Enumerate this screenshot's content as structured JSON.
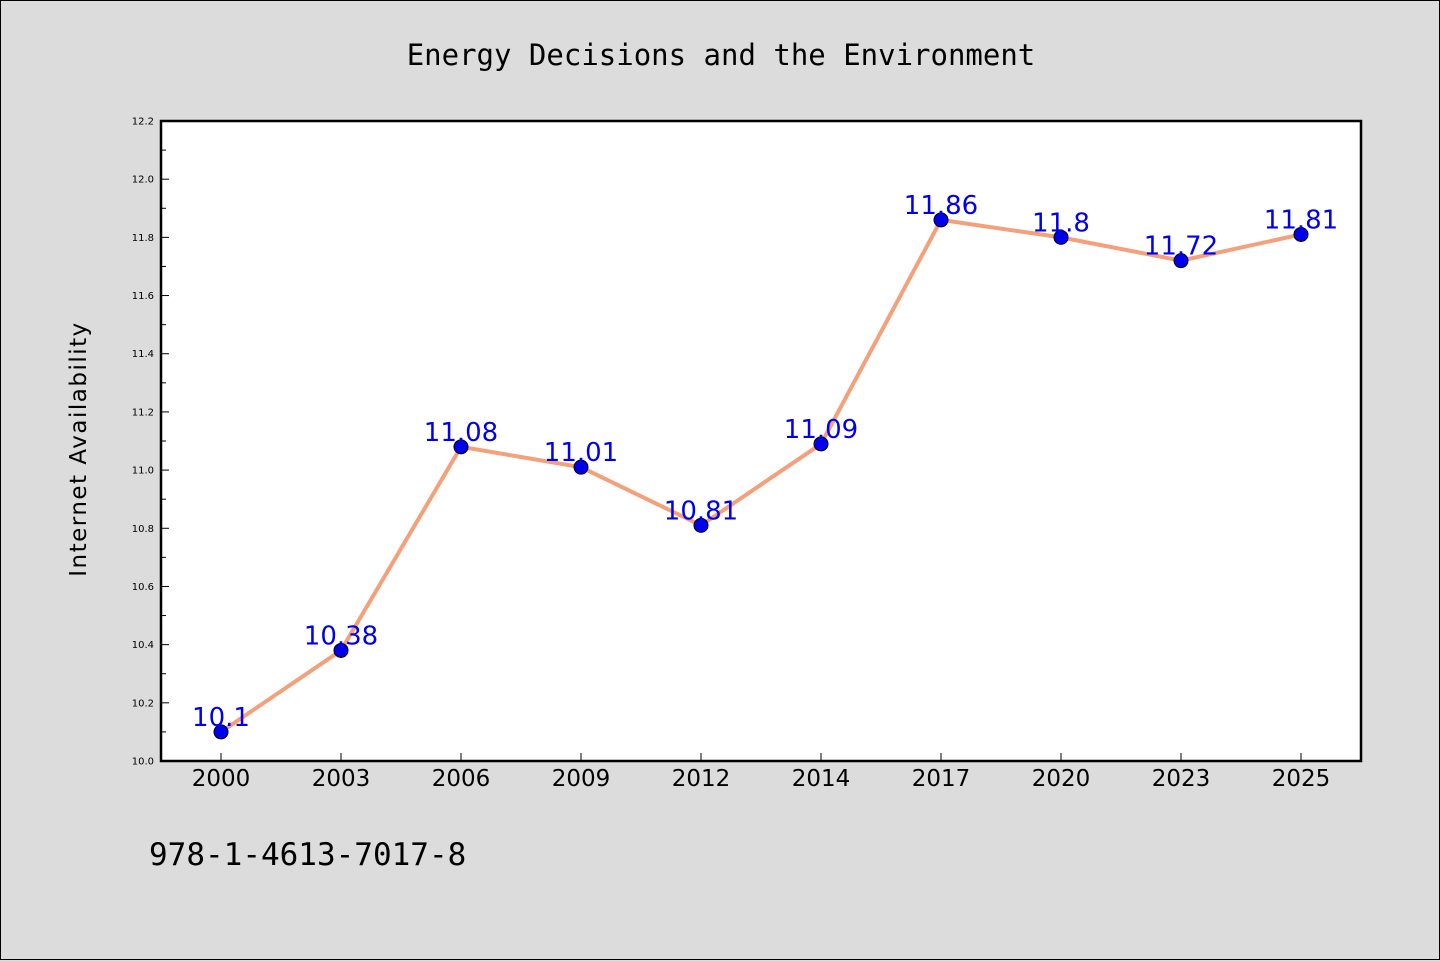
{
  "chart_data": {
    "type": "line",
    "title": "Energy Decisions and the Environment",
    "ylabel": "Internet Availability",
    "xlabel": "",
    "categories": [
      "2000",
      "2003",
      "2006",
      "2009",
      "2012",
      "2014",
      "2017",
      "2020",
      "2023",
      "2025"
    ],
    "series": [
      {
        "values": [
          10.1,
          10.38,
          11.08,
          11.01,
          10.81,
          11.09,
          11.86,
          11.8,
          11.72,
          11.81
        ],
        "data_labels": [
          "10.1",
          "10.38",
          "11.08",
          "11.01",
          "10.81",
          "11.09",
          "11.86",
          "11.8",
          "11.72",
          "11.81"
        ]
      }
    ],
    "ylim": [
      10.0,
      12.2
    ],
    "y_major_ticks": [
      10.0,
      10.2,
      10.4,
      10.6,
      10.8,
      11.0,
      11.2,
      11.4,
      11.6,
      11.8,
      12.0,
      12.2
    ],
    "y_tick_labels": [
      "10.0",
      "10.2",
      "10.4",
      "10.6",
      "10.8",
      "11.0",
      "11.2",
      "11.4",
      "11.6",
      "11.8",
      "12.0",
      "12.2"
    ],
    "grid": false,
    "legend": "none",
    "colors": {
      "line": "#f4a07a",
      "marker": "#0000ee",
      "data_label": "#0000ee",
      "background": "#dcdcdc",
      "plot_background": "#ffffff"
    }
  },
  "footer": {
    "isbn": "978-1-4613-7017-8"
  }
}
